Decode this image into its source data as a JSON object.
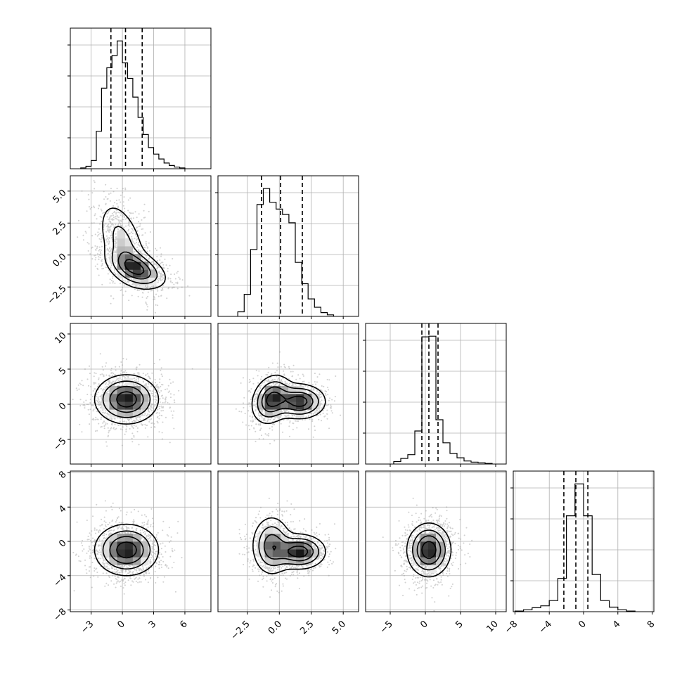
{
  "chart_data": {
    "type": "corner",
    "parameters": 4,
    "grid": true,
    "ink_color": "#000000",
    "scatter_color": "#9a9a9a",
    "ranges": [
      [
        -5,
        8.5
      ],
      [
        -4.8,
        6.2
      ],
      [
        -8.5,
        11.5
      ],
      [
        -8.2,
        8.2
      ]
    ],
    "tick_values": [
      [
        -3,
        0,
        3,
        6
      ],
      [
        -2.5,
        0.0,
        2.5,
        5.0
      ],
      [
        -5,
        0,
        5,
        10
      ],
      [
        -8,
        -4,
        0,
        4,
        8
      ]
    ],
    "tick_labels": [
      [
        "−3",
        "0",
        "3",
        "6"
      ],
      [
        "−2.5",
        "0.0",
        "2.5",
        "5.0"
      ],
      [
        "−5",
        "0",
        "5",
        "10"
      ],
      [
        "−8",
        "−4",
        "0",
        "4",
        "8"
      ]
    ],
    "quantiles": [
      [
        -1.1,
        0.3,
        1.9
      ],
      [
        -1.4,
        0.1,
        1.8
      ],
      [
        -0.5,
        0.5,
        1.8
      ],
      [
        -2.3,
        -0.9,
        0.5
      ]
    ],
    "histograms": [
      {
        "bin_edges": [
          -4.0,
          -3.5,
          -3.0,
          -2.5,
          -2.0,
          -1.5,
          -1.0,
          -0.5,
          0.0,
          0.5,
          1.0,
          1.5,
          2.0,
          2.5,
          3.0,
          3.5,
          4.0,
          4.5,
          5.0,
          5.5,
          6.0
        ],
        "counts": [
          1,
          3,
          10,
          46,
          99,
          124,
          139,
          157,
          130,
          111,
          88,
          63,
          42,
          26,
          18,
          12,
          7,
          4,
          2,
          1
        ]
      },
      {
        "bin_edges": [
          -3.25,
          -2.75,
          -2.25,
          -1.75,
          -1.25,
          -0.75,
          -0.25,
          0.25,
          0.75,
          1.25,
          1.75,
          2.25,
          2.75,
          3.25,
          3.75,
          4.25
        ],
        "counts": [
          6,
          29,
          88,
          147,
          168,
          150,
          141,
          134,
          123,
          71,
          43,
          23,
          12,
          5,
          2
        ]
      },
      {
        "bin_edges": [
          -4.5,
          -3.5,
          -2.5,
          -1.5,
          -0.5,
          0.5,
          1.5,
          2.5,
          3.5,
          4.5,
          5.5,
          6.5,
          7.5,
          8.5,
          9.5
        ],
        "counts": [
          4,
          9,
          15,
          53,
          204,
          205,
          71,
          34,
          17,
          10,
          5,
          3,
          2,
          1
        ]
      },
      {
        "bin_edges": [
          -8.0,
          -7.0,
          -6.0,
          -5.0,
          -4.0,
          -3.0,
          -2.0,
          -1.0,
          0.0,
          1.0,
          2.0,
          3.0,
          4.0,
          5.0,
          6.0
        ],
        "counts": [
          1,
          3,
          6,
          9,
          17,
          51,
          147,
          196,
          147,
          57,
          17,
          7,
          3,
          1
        ]
      }
    ],
    "contour_levels": 4,
    "joint_distributions": [
      {
        "pair": [
          0,
          1
        ],
        "components": [
          {
            "mean": [
              0,
              1
            ],
            "cov": [
              [
                1.5,
                -1.0
              ],
              [
                -1.0,
                3.0
              ]
            ],
            "weight": 0.5
          },
          {
            "mean": [
              1.4,
              -1.1
            ],
            "cov": [
              [
                2.0,
                -0.5
              ],
              [
                -0.5,
                0.6
              ]
            ],
            "weight": 0.5
          }
        ]
      },
      {
        "pair": [
          0,
          2
        ],
        "components": [
          {
            "mean": [
              0.4,
              0.7
            ],
            "cov": [
              [
                2.3,
                0.0
              ],
              [
                0.0,
                3.0
              ]
            ],
            "weight": 1.0
          }
        ]
      },
      {
        "pair": [
          0,
          3
        ],
        "components": [
          {
            "mean": [
              0.4,
              -1.0
            ],
            "cov": [
              [
                2.3,
                0.0
              ],
              [
                0.0,
                2.2
              ]
            ],
            "weight": 1.0
          }
        ]
      },
      {
        "pair": [
          1,
          2
        ],
        "components": [
          {
            "mean": [
              -0.6,
              0.7
            ],
            "cov": [
              [
                0.6,
                0.3
              ],
              [
                0.3,
                3.0
              ]
            ],
            "weight": 0.5
          },
          {
            "mean": [
              1.6,
              0.4
            ],
            "cov": [
              [
                1.0,
                0.0
              ],
              [
                0.0,
                1.5
              ]
            ],
            "weight": 0.5
          }
        ]
      },
      {
        "pair": [
          1,
          3
        ],
        "components": [
          {
            "mean": [
              -0.6,
              -0.5
            ],
            "cov": [
              [
                0.6,
                0.0
              ],
              [
                0.0,
                3.0
              ]
            ],
            "weight": 0.5
          },
          {
            "mean": [
              1.6,
              -1.2
            ],
            "cov": [
              [
                1.0,
                0.0
              ],
              [
                0.0,
                1.0
              ]
            ],
            "weight": 0.5
          }
        ]
      },
      {
        "pair": [
          2,
          3
        ],
        "components": [
          {
            "mean": [
              0.5,
              -1.0
            ],
            "cov": [
              [
                2.4,
                0.0
              ],
              [
                0.0,
                2.4
              ]
            ],
            "weight": 1.0
          }
        ]
      }
    ]
  }
}
